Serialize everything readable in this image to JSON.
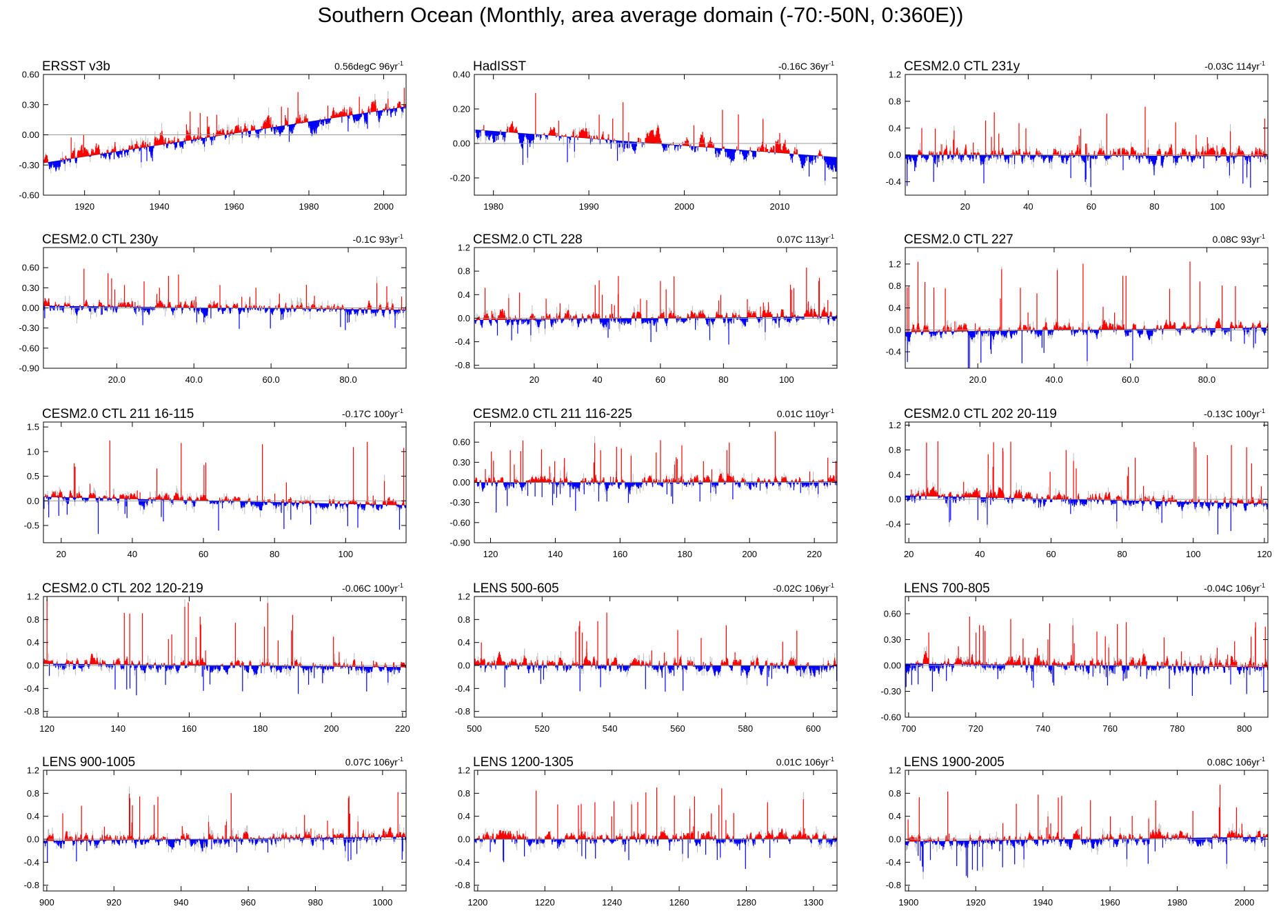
{
  "title": "Southern Ocean (Monthly, area average domain (-70:-50N, 0:360E))",
  "colors": {
    "positive": "#ff0000",
    "negative": "#0000ff",
    "zero_line": "#999999",
    "trend_line": "#000000",
    "frame": "#000000"
  },
  "chart_data": [
    {
      "type": "bar",
      "title": "ERSST v3b",
      "trend_value": "0.56degC 96yr",
      "trend_exponent": "-1",
      "xlim": [
        1909,
        2006
      ],
      "ylim": [
        -0.6,
        0.6
      ],
      "xticks": [
        "1920",
        "1940",
        "1960",
        "1980",
        "2000"
      ],
      "xtick_values": [
        1920,
        1940,
        1960,
        1980,
        2000
      ],
      "yticks": [
        "-0.60",
        "-0.30",
        "0.00",
        "0.30",
        "0.60"
      ],
      "ytick_values": [
        -0.6,
        -0.3,
        0,
        0.3,
        0.6
      ],
      "trend_start": -0.28,
      "trend_end": 0.28,
      "noise": 0.09,
      "spike_max": 0.3,
      "seed": 11
    },
    {
      "type": "bar",
      "title": "HadISST",
      "trend_value": "-0.16C 36yr",
      "trend_exponent": "-1",
      "xlim": [
        1978,
        2016
      ],
      "ylim": [
        -0.3,
        0.4
      ],
      "xticks": [
        "1980",
        "1990",
        "2000",
        "2010"
      ],
      "xtick_values": [
        1980,
        1990,
        2000,
        2010
      ],
      "yticks": [
        "-0.20",
        "0.00",
        "0.20",
        "0.40"
      ],
      "ytick_values": [
        -0.2,
        0,
        0.2,
        0.4
      ],
      "trend_start": 0.08,
      "trend_end": -0.08,
      "noise": 0.07,
      "spike_max": 0.28,
      "seed": 23
    },
    {
      "type": "bar",
      "title": "CESM2.0 CTL 231y",
      "trend_value": "-0.03C 114yr",
      "trend_exponent": "-1",
      "xlim": [
        1,
        116
      ],
      "ylim": [
        -0.6,
        1.2
      ],
      "xticks": [
        "20",
        "40",
        "60",
        "80",
        "100"
      ],
      "xtick_values": [
        20,
        40,
        60,
        80,
        100
      ],
      "yticks": [
        "-0.4",
        "0.0",
        "0.4",
        "0.8",
        "1.2"
      ],
      "ytick_values": [
        -0.4,
        0,
        0.4,
        0.8,
        1.2
      ],
      "trend_start": 0.0,
      "trend_end": -0.02,
      "noise": 0.12,
      "spike_max": 0.8,
      "seed": 37
    },
    {
      "type": "bar",
      "title": "CESM2.0 CTL 230y",
      "trend_value": "-0.1C 93yr",
      "trend_exponent": "-1",
      "xlim": [
        1,
        95
      ],
      "ylim": [
        -0.9,
        0.9
      ],
      "xticks": [
        "20.0",
        "40.0",
        "60.0",
        "80.0"
      ],
      "xtick_values": [
        20,
        40,
        60,
        80
      ],
      "yticks": [
        "-0.90",
        "-0.60",
        "-0.30",
        "0.00",
        "0.30",
        "0.60"
      ],
      "ytick_values": [
        -0.9,
        -0.6,
        -0.3,
        0,
        0.3,
        0.6
      ],
      "trend_start": 0.03,
      "trend_end": -0.03,
      "noise": 0.1,
      "spike_max": 0.6,
      "seed": 41
    },
    {
      "type": "bar",
      "title": "CESM2.0 CTL 228",
      "trend_value": "0.07C 113yr",
      "trend_exponent": "-1",
      "xlim": [
        1,
        116
      ],
      "ylim": [
        -0.85,
        1.2
      ],
      "xticks": [
        "20",
        "40",
        "60",
        "80",
        "100"
      ],
      "xtick_values": [
        20,
        40,
        60,
        80,
        100
      ],
      "yticks": [
        "-0.8",
        "-0.4",
        "0.0",
        "0.4",
        "0.8",
        "1.2"
      ],
      "ytick_values": [
        -0.8,
        -0.4,
        0,
        0.4,
        0.8,
        1.2
      ],
      "trend_start": -0.03,
      "trend_end": 0.03,
      "noise": 0.12,
      "spike_max": 0.75,
      "seed": 53
    },
    {
      "type": "bar",
      "title": "CESM2.0 CTL 227",
      "trend_value": "0.08C 93yr",
      "trend_exponent": "-1",
      "xlim": [
        1,
        96
      ],
      "ylim": [
        -0.7,
        1.5
      ],
      "xticks": [
        "20.0",
        "40.0",
        "60.0",
        "80.0"
      ],
      "xtick_values": [
        20,
        40,
        60,
        80
      ],
      "yticks": [
        "-0.4",
        "0.0",
        "0.4",
        "0.8",
        "1.2"
      ],
      "ytick_values": [
        -0.4,
        0,
        0.4,
        0.8,
        1.2
      ],
      "trend_start": -0.04,
      "trend_end": 0.04,
      "noise": 0.12,
      "spike_max": 1.3,
      "seed": 67
    },
    {
      "type": "bar",
      "title": "CESM2.0 CTL 211 16-115",
      "trend_value": "-0.17C 100yr",
      "trend_exponent": "-1",
      "xlim": [
        15,
        117
      ],
      "ylim": [
        -0.85,
        1.6
      ],
      "xticks": [
        "20",
        "40",
        "60",
        "80",
        "100"
      ],
      "xtick_values": [
        20,
        40,
        60,
        80,
        100
      ],
      "yticks": [
        "-0.5",
        "0.0",
        "0.5",
        "1.0",
        "1.5"
      ],
      "ytick_values": [
        -0.5,
        0,
        0.5,
        1.0,
        1.5
      ],
      "trend_start": 0.08,
      "trend_end": -0.09,
      "noise": 0.12,
      "spike_max": 1.3,
      "seed": 71
    },
    {
      "type": "bar",
      "title": "CESM2.0 CTL 211 116-225",
      "trend_value": "0.01C 110yr",
      "trend_exponent": "-1",
      "xlim": [
        115,
        227
      ],
      "ylim": [
        -0.9,
        0.9
      ],
      "xticks": [
        "120",
        "140",
        "160",
        "180",
        "200",
        "220"
      ],
      "xtick_values": [
        120,
        140,
        160,
        180,
        200,
        220
      ],
      "yticks": [
        "-0.90",
        "-0.60",
        "-0.30",
        "0.00",
        "0.30",
        "0.60"
      ],
      "ytick_values": [
        -0.9,
        -0.6,
        -0.3,
        0,
        0.3,
        0.6
      ],
      "trend_start": 0.0,
      "trend_end": 0.01,
      "noise": 0.1,
      "spike_max": 0.7,
      "seed": 83
    },
    {
      "type": "bar",
      "title": "CESM2.0 CTL 202 20-119",
      "trend_value": "-0.13C 100yr",
      "trend_exponent": "-1",
      "xlim": [
        19,
        121
      ],
      "ylim": [
        -0.7,
        1.25
      ],
      "xticks": [
        "20",
        "40",
        "60",
        "80",
        "100",
        "120"
      ],
      "xtick_values": [
        20,
        40,
        60,
        80,
        100,
        120
      ],
      "yticks": [
        "-0.4",
        "0.0",
        "0.4",
        "0.8",
        "1.2"
      ],
      "ytick_values": [
        -0.4,
        0,
        0.4,
        0.8,
        1.2
      ],
      "trend_start": 0.06,
      "trend_end": -0.07,
      "noise": 0.12,
      "spike_max": 1.0,
      "seed": 97
    },
    {
      "type": "bar",
      "title": "CESM2.0 CTL 202 120-219",
      "trend_value": "-0.06C 100yr",
      "trend_exponent": "-1",
      "xlim": [
        119,
        221
      ],
      "ylim": [
        -0.9,
        1.2
      ],
      "xticks": [
        "120",
        "140",
        "160",
        "180",
        "200",
        "220"
      ],
      "xtick_values": [
        120,
        140,
        160,
        180,
        200,
        220
      ],
      "yticks": [
        "-0.8",
        "-0.4",
        "0.0",
        "0.4",
        "0.8",
        "1.2"
      ],
      "ytick_values": [
        -0.8,
        -0.4,
        0,
        0.4,
        0.8,
        1.2
      ],
      "trend_start": 0.03,
      "trend_end": -0.03,
      "noise": 0.12,
      "spike_max": 1.1,
      "seed": 101
    },
    {
      "type": "bar",
      "title": "LENS 500-605",
      "trend_value": "-0.02C 106yr",
      "trend_exponent": "-1",
      "xlim": [
        500,
        607
      ],
      "ylim": [
        -0.9,
        1.2
      ],
      "xticks": [
        "500",
        "520",
        "540",
        "560",
        "580",
        "600"
      ],
      "xtick_values": [
        500,
        520,
        540,
        560,
        580,
        600
      ],
      "yticks": [
        "-0.8",
        "-0.4",
        "0.0",
        "0.4",
        "0.8",
        "1.2"
      ],
      "ytick_values": [
        -0.8,
        -0.4,
        0,
        0.4,
        0.8,
        1.2
      ],
      "trend_start": 0.01,
      "trend_end": -0.01,
      "noise": 0.13,
      "spike_max": 0.9,
      "seed": 113
    },
    {
      "type": "bar",
      "title": "LENS 700-805",
      "trend_value": "-0.04C 106yr",
      "trend_exponent": "-1",
      "xlim": [
        699,
        807
      ],
      "ylim": [
        -0.6,
        0.8
      ],
      "xticks": [
        "700",
        "720",
        "740",
        "760",
        "780",
        "800"
      ],
      "xtick_values": [
        700,
        720,
        740,
        760,
        780,
        800
      ],
      "yticks": [
        "-0.60",
        "-0.30",
        "0.00",
        "0.30",
        "0.60"
      ],
      "ytick_values": [
        -0.6,
        -0.3,
        0,
        0.3,
        0.6
      ],
      "trend_start": 0.02,
      "trend_end": -0.02,
      "noise": 0.1,
      "spike_max": 0.55,
      "seed": 127
    },
    {
      "type": "bar",
      "title": "LENS 900-1005",
      "trend_value": "0.07C 106yr",
      "trend_exponent": "-1",
      "xlim": [
        899,
        1007
      ],
      "ylim": [
        -0.9,
        1.2
      ],
      "xticks": [
        "900",
        "920",
        "940",
        "960",
        "980",
        "1000"
      ],
      "xtick_values": [
        900,
        920,
        940,
        960,
        980,
        1000
      ],
      "yticks": [
        "-0.8",
        "-0.4",
        "0.0",
        "0.4",
        "0.8",
        "1.2"
      ],
      "ytick_values": [
        -0.8,
        -0.4,
        0,
        0.4,
        0.8,
        1.2
      ],
      "trend_start": -0.03,
      "trend_end": 0.04,
      "noise": 0.12,
      "spike_max": 0.8,
      "seed": 131
    },
    {
      "type": "bar",
      "title": "LENS 1200-1305",
      "trend_value": "0.01C 106yr",
      "trend_exponent": "-1",
      "xlim": [
        1199,
        1307
      ],
      "ylim": [
        -0.9,
        1.2
      ],
      "xticks": [
        "1200",
        "1220",
        "1240",
        "1260",
        "1280",
        "1300"
      ],
      "xtick_values": [
        1200,
        1220,
        1240,
        1260,
        1280,
        1300
      ],
      "yticks": [
        "-0.8",
        "-0.4",
        "0.0",
        "0.4",
        "0.8",
        "1.2"
      ],
      "ytick_values": [
        -0.8,
        -0.4,
        0,
        0.4,
        0.8,
        1.2
      ],
      "trend_start": 0.0,
      "trend_end": 0.01,
      "noise": 0.12,
      "spike_max": 1.0,
      "seed": 149
    },
    {
      "type": "bar",
      "title": "LENS 1900-2005",
      "trend_value": "0.08C 106yr",
      "trend_exponent": "-1",
      "xlim": [
        1899,
        2007
      ],
      "ylim": [
        -0.9,
        1.2
      ],
      "xticks": [
        "1900",
        "1920",
        "1940",
        "1960",
        "1980",
        "2000"
      ],
      "xtick_values": [
        1900,
        1920,
        1940,
        1960,
        1980,
        2000
      ],
      "yticks": [
        "-0.8",
        "-0.4",
        "0.0",
        "0.4",
        "0.8",
        "1.2"
      ],
      "ytick_values": [
        -0.8,
        -0.4,
        0,
        0.4,
        0.8,
        1.2
      ],
      "trend_start": -0.04,
      "trend_end": 0.04,
      "noise": 0.12,
      "spike_max": 0.95,
      "seed": 157
    }
  ]
}
